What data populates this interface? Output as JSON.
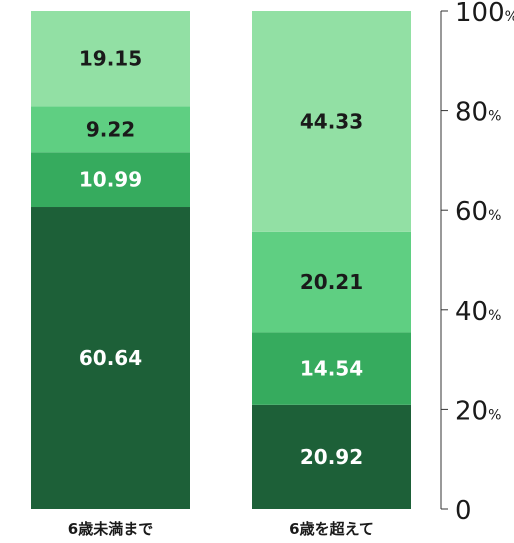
{
  "chart_data": {
    "type": "bar",
    "stacked": true,
    "categories": [
      "6歳未満まで",
      "6歳を超えて"
    ],
    "series": [
      {
        "values": [
          60.64,
          20.92
        ],
        "color": "#1d6038"
      },
      {
        "values": [
          10.99,
          14.54
        ],
        "color": "#36ab5e"
      },
      {
        "values": [
          9.22,
          20.21
        ],
        "color": "#5fcf82"
      },
      {
        "values": [
          19.15,
          44.33
        ],
        "color": "#92e0a4"
      }
    ],
    "ylim": [
      0,
      100
    ],
    "yticks": [
      {
        "value": 0,
        "label": "0",
        "unit": ""
      },
      {
        "value": 20,
        "label": "20",
        "unit": "%"
      },
      {
        "value": 40,
        "label": "40",
        "unit": "%"
      },
      {
        "value": 60,
        "label": "60",
        "unit": "%"
      },
      {
        "value": 80,
        "label": "80",
        "unit": "%"
      },
      {
        "value": 100,
        "label": "100",
        "unit": "%"
      }
    ],
    "axis_side": "right",
    "grid": false,
    "label_color": "#ffffff",
    "dark_label_color": "#1a1a1a",
    "text_color": "#1a1a1a",
    "axis_color": "#333333"
  }
}
